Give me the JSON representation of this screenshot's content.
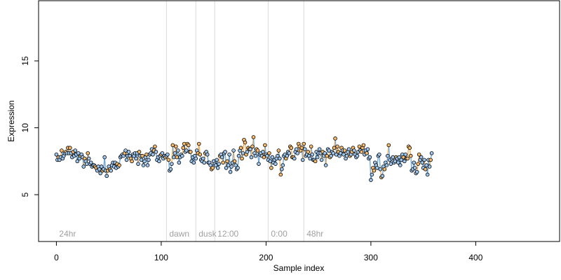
{
  "chart_data": {
    "type": "scatter",
    "title": "",
    "xlabel": "Sample index",
    "ylabel": "Expression",
    "xlim": [
      -17,
      480
    ],
    "ylim": [
      1.5,
      19.5
    ],
    "x_ticks": [
      0,
      100,
      200,
      300,
      400
    ],
    "y_ticks": [
      5,
      10,
      15
    ],
    "grid": false,
    "legend": "none",
    "colors": {
      "point_fill_blue": "#9ec5ec",
      "point_fill_orange": "#f4b96a",
      "segment_blue": "#5b9bd5",
      "segment_orange": "#f2a444",
      "point_edge": "#000000",
      "annotation_line": "#d9d9d9",
      "annotation_text": "#a0a0a0"
    },
    "annotations": [
      {
        "x": 0,
        "label": "24hr",
        "line": false
      },
      {
        "x": 105,
        "label": "dawn",
        "line": true
      },
      {
        "x": 133,
        "label": "dusk",
        "line": true
      },
      {
        "x": 151,
        "label": "12:00",
        "line": true
      },
      {
        "x": 202,
        "label": "0:00",
        "line": true
      },
      {
        "x": 236,
        "label": "48hr",
        "line": true
      }
    ],
    "series": [
      {
        "values": [
          8.0,
          7.6,
          7.8,
          7.6,
          7.8,
          8.3,
          7.7,
          7.9,
          8.1,
          8.2,
          8.1,
          8.5,
          8.1,
          8.5,
          8.1,
          7.8,
          8.2,
          7.9,
          8.3,
          8.0,
          7.5,
          8.1,
          7.7,
          7.9,
          8.0,
          7.8,
          7.1,
          7.7,
          7.5,
          7.3,
          8.1,
          7.7,
          7.3,
          7.4,
          7.1,
          7.2,
          7.2,
          7.1,
          7.0,
          6.8,
          7.1,
          6.9,
          6.6,
          7.1,
          6.8,
          6.9,
          7.8,
          6.8,
          6.4,
          6.8,
          7.1,
          6.9,
          6.8,
          7.2,
          7.4,
          7.1,
          7.4,
          7.0,
          7.3,
          7.1,
          7.2,
          7.8,
          7.9,
          8.0,
          7.9,
          8.1,
          8.3,
          7.6,
          7.9,
          8.2,
          7.9,
          7.7,
          7.5,
          8.0,
          7.9,
          8.1,
          7.7,
          8.1,
          7.3,
          8.2,
          7.9,
          7.6,
          7.9,
          7.2,
          7.5,
          7.8,
          8.0,
          7.2,
          7.6,
          8.0,
          8.1,
          8.4,
          8.0,
          8.3,
          8.6,
          8.2,
          7.6,
          7.8,
          7.5,
          7.9,
          8.0,
          8.1,
          7.7,
          7.9,
          7.8,
          7.9,
          8.0,
          7.6,
          6.8,
          6.9,
          7.3,
          8.7,
          7.8,
          8.1,
          8.6,
          7.8,
          8.3,
          7.4,
          7.8,
          8.0,
          7.9,
          8.5,
          8.8,
          8.2,
          8.3,
          8.8,
          8.7,
          8.2,
          8.2,
          7.5,
          7.8,
          7.4,
          7.9,
          7.7,
          8.3,
          8.1,
          8.8,
          8.0,
          7.6,
          7.5,
          7.7,
          7.4,
          8.1,
          8.2,
          8.0,
          7.4,
          7.4,
          7.2,
          6.9,
          7.0,
          7.5,
          7.3,
          7.2,
          7.6,
          7.0,
          7.3,
          7.9,
          8.0,
          7.8,
          7.4,
          8.1,
          8.2,
          7.0,
          7.5,
          7.2,
          8.0,
          6.7,
          7.1,
          7.4,
          8.3,
          7.5,
          7.2,
          6.9,
          7.0,
          7.9,
          8.3,
          8.5,
          7.7,
          8.1,
          9.1,
          8.9,
          8.0,
          8.2,
          8.5,
          8.4,
          8.4,
          7.8,
          8.6,
          9.3,
          8.1,
          7.9,
          8.4,
          8.3,
          7.3,
          8.0,
          8.1,
          7.9,
          8.2,
          7.8,
          8.7,
          8.0,
          7.9,
          7.6,
          8.1,
          7.5,
          7.0,
          7.8,
          7.4,
          7.6,
          7.3,
          7.7,
          7.9,
          8.3,
          7.7,
          6.5,
          6.9,
          7.2,
          7.9,
          8.0,
          7.7,
          7.9,
          8.2,
          8.1,
          8.6,
          8.5,
          7.8,
          7.8,
          7.7,
          8.2,
          8.4,
          8.1,
          8.8,
          8.6,
          8.3,
          8.5,
          7.6,
          8.8,
          8.4,
          7.9,
          8.0,
          8.2,
          7.9,
          7.7,
          8.6,
          8.0,
          7.6,
          7.6,
          7.5,
          8.2,
          7.8,
          8.1,
          8.4,
          8.1,
          7.6,
          8.2,
          7.9,
          8.1,
          7.2,
          7.9,
          8.4,
          8.3,
          7.8,
          7.9,
          8.2,
          8.1,
          8.5,
          9.2,
          8.0,
          8.6,
          8.2,
          7.9,
          8.1,
          8.5,
          8.3,
          8.0,
          8.3,
          7.7,
          7.9,
          8.2,
          8.4,
          7.9,
          8.0,
          8.2,
          8.5,
          8.3,
          8.0,
          7.8,
          7.9,
          8.2,
          8.6,
          8.3,
          8.2,
          8.5,
          8.7,
          8.0,
          8.3,
          8.1,
          8.4,
          7.7,
          7.8,
          6.1,
          6.5,
          7.0,
          6.8,
          7.4,
          7.2,
          7.0,
          7.9,
          8.0,
          6.9,
          6.3,
          6.4,
          7.1,
          6.9,
          7.4,
          7.2,
          7.9,
          8.7,
          7.6,
          7.3,
          7.7,
          7.8,
          7.4,
          7.5,
          7.8,
          7.7,
          7.4,
          7.8,
          7.2,
          7.6,
          8.0,
          7.8,
          7.5,
          8.0,
          7.7,
          7.7,
          8.6,
          8.5,
          7.9,
          6.8,
          6.9,
          7.4,
          7.0,
          6.6,
          6.7,
          7.3,
          8.0,
          7.6,
          7.8,
          7.4,
          7.0,
          7.6,
          6.9,
          7.2,
          6.5,
          7.6,
          7.1,
          7.6,
          8.1
        ]
      }
    ]
  }
}
